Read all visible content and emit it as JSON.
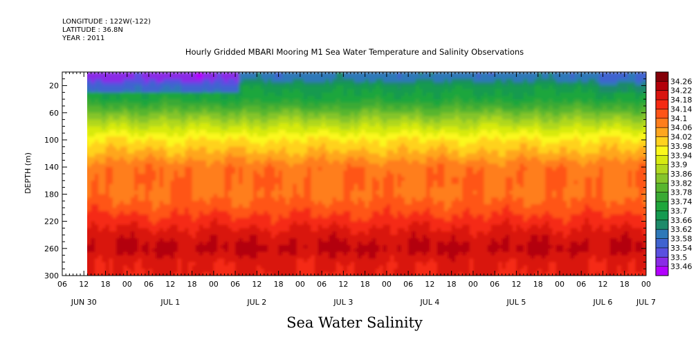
{
  "header": {
    "longitude": "LONGITUDE : 122W(-122)",
    "latitude": "LATITUDE : 36.8N",
    "year": "YEAR : 2011",
    "title": "Hourly Gridded MBARI Mooring M1 Sea Water Temperature and Salinity Observations"
  },
  "footer": {
    "variable_title": "Sea Water Salinity"
  },
  "chart_data": {
    "type": "heatmap",
    "title": "Hourly Gridded MBARI Mooring M1 Sea Water Temperature and Salinity Observations",
    "subtitle": "Sea Water Salinity",
    "xlabel": "",
    "ylabel": "DEPTH (m)",
    "x_unit": "hours since JUN 30 00:00, 2011",
    "xlim": [
      6,
      168
    ],
    "data_xlim": [
      12,
      167
    ],
    "ylim": [
      300,
      0
    ],
    "yticks": [
      20,
      60,
      100,
      140,
      180,
      220,
      260,
      300
    ],
    "x_hour_ticks": [
      {
        "h": 6,
        "label": "06"
      },
      {
        "h": 12,
        "label": "12"
      },
      {
        "h": 18,
        "label": "18"
      },
      {
        "h": 24,
        "label": "00"
      },
      {
        "h": 30,
        "label": "06"
      },
      {
        "h": 36,
        "label": "12"
      },
      {
        "h": 42,
        "label": "18"
      },
      {
        "h": 48,
        "label": "00"
      },
      {
        "h": 54,
        "label": "06"
      },
      {
        "h": 60,
        "label": "12"
      },
      {
        "h": 66,
        "label": "18"
      },
      {
        "h": 72,
        "label": "00"
      },
      {
        "h": 78,
        "label": "06"
      },
      {
        "h": 84,
        "label": "12"
      },
      {
        "h": 90,
        "label": "18"
      },
      {
        "h": 96,
        "label": "00"
      },
      {
        "h": 102,
        "label": "06"
      },
      {
        "h": 108,
        "label": "12"
      },
      {
        "h": 114,
        "label": "18"
      },
      {
        "h": 120,
        "label": "00"
      },
      {
        "h": 126,
        "label": "06"
      },
      {
        "h": 132,
        "label": "12"
      },
      {
        "h": 138,
        "label": "18"
      },
      {
        "h": 144,
        "label": "00"
      },
      {
        "h": 150,
        "label": "06"
      },
      {
        "h": 156,
        "label": "12"
      },
      {
        "h": 162,
        "label": "18"
      },
      {
        "h": 168,
        "label": "00"
      }
    ],
    "x_day_labels": [
      {
        "h": 12,
        "label": "JUN 30"
      },
      {
        "h": 36,
        "label": "JUL  1"
      },
      {
        "h": 60,
        "label": "JUL  2"
      },
      {
        "h": 84,
        "label": "JUL  3"
      },
      {
        "h": 108,
        "label": "JUL  4"
      },
      {
        "h": 132,
        "label": "JUL  5"
      },
      {
        "h": 156,
        "label": "JUL  6"
      },
      {
        "h": 168,
        "label": "JUL  7"
      }
    ],
    "colorbar": {
      "levels": [
        33.46,
        33.5,
        33.54,
        33.58,
        33.62,
        33.66,
        33.7,
        33.74,
        33.78,
        33.82,
        33.86,
        33.9,
        33.94,
        33.98,
        34.02,
        34.06,
        34.1,
        34.14,
        34.18,
        34.22,
        34.26
      ],
      "labels": [
        "33.46",
        "33.5",
        "33.54",
        "33.58",
        "33.62",
        "33.66",
        "33.7",
        "33.74",
        "33.78",
        "33.82",
        "33.86",
        "33.9",
        "33.94",
        "33.98",
        "34.02",
        "34.06",
        "34.1",
        "34.14",
        "34.18",
        "34.22",
        "34.26"
      ],
      "colors": [
        "#b300ff",
        "#8a2be6",
        "#5a50e0",
        "#3f63d0",
        "#2e78b8",
        "#1d8a6a",
        "#159a50",
        "#1fa63c",
        "#3aaa34",
        "#58b62e",
        "#85c52b",
        "#b0d81f",
        "#d7ea10",
        "#fbf81a",
        "#ffd21e",
        "#ffa61e",
        "#ff7e1c",
        "#ff5418",
        "#f52a13",
        "#d9140f",
        "#b3000a",
        "#840008"
      ]
    },
    "depth_profile": [
      {
        "depth": 10,
        "salinity": 33.6
      },
      {
        "depth": 20,
        "salinity": 33.68
      },
      {
        "depth": 40,
        "salinity": 33.72
      },
      {
        "depth": 60,
        "salinity": 33.82
      },
      {
        "depth": 80,
        "salinity": 33.9
      },
      {
        "depth": 100,
        "salinity": 33.98
      },
      {
        "depth": 120,
        "salinity": 34.03
      },
      {
        "depth": 140,
        "salinity": 34.09
      },
      {
        "depth": 160,
        "salinity": 34.1
      },
      {
        "depth": 180,
        "salinity": 34.09
      },
      {
        "depth": 200,
        "salinity": 34.12
      },
      {
        "depth": 220,
        "salinity": 34.16
      },
      {
        "depth": 240,
        "salinity": 34.2
      },
      {
        "depth": 260,
        "salinity": 34.23
      },
      {
        "depth": 280,
        "salinity": 34.19
      },
      {
        "depth": 300,
        "salinity": 34.18
      }
    ]
  }
}
